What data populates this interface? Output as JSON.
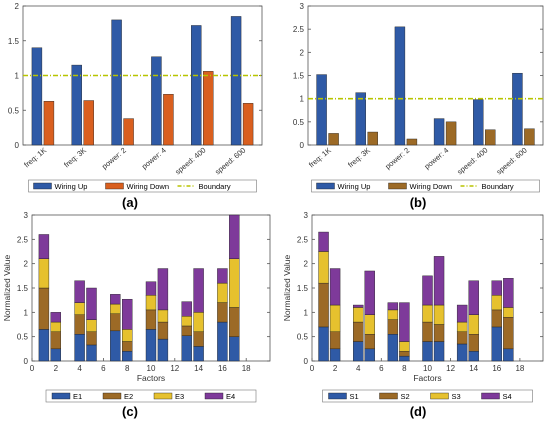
{
  "colors": {
    "blue": "#2f5aa6",
    "orange": "#d95f1f",
    "brown": "#9c6a26",
    "yellow": "#e6c12e",
    "purple": "#7e3a9a",
    "boundary": "#b8c400",
    "axis": "#333333"
  },
  "panels": {
    "a": {
      "caption": "(a)"
    },
    "b": {
      "caption": "(b)"
    },
    "c": {
      "caption": "(c)"
    },
    "d": {
      "caption": "(d)"
    }
  },
  "chart_data": [
    {
      "id": "a",
      "type": "bar",
      "categories": [
        "freq: 1K",
        "freq: 3K",
        "power: 2",
        "power: 4",
        "speed: 400",
        "speed: 600"
      ],
      "series": [
        {
          "name": "Wiring Up",
          "values": [
            1.4,
            1.15,
            1.8,
            1.27,
            1.72,
            1.85
          ]
        },
        {
          "name": "Wiring Down",
          "values": [
            0.63,
            0.64,
            0.38,
            0.73,
            1.06,
            0.6
          ]
        }
      ],
      "boundary": {
        "name": "Boundary",
        "value": 1.0
      },
      "ylim": [
        0,
        2
      ],
      "yticks": [
        "0",
        "0.5",
        "1",
        "1.5",
        "2"
      ],
      "legend_position": "bottom",
      "grid": false
    },
    {
      "id": "b",
      "type": "bar",
      "categories": [
        "freq: 1K",
        "freq: 3K",
        "power: 2",
        "power: 4",
        "speed: 400",
        "speed: 600"
      ],
      "series": [
        {
          "name": "Wiring Up",
          "values": [
            1.52,
            1.13,
            2.55,
            0.57,
            0.98,
            1.55
          ]
        },
        {
          "name": "Wiring Down",
          "values": [
            0.25,
            0.28,
            0.13,
            0.5,
            0.33,
            0.35
          ]
        }
      ],
      "boundary": {
        "name": "Boundary",
        "value": 1.0
      },
      "ylim": [
        0,
        3
      ],
      "yticks": [
        "0",
        "0.5",
        "1",
        "1.5",
        "2",
        "2.5",
        "3"
      ],
      "legend_position": "bottom",
      "grid": false
    },
    {
      "id": "c",
      "type": "bar",
      "stacked": true,
      "xlabel": "Factors",
      "ylabel": "Normalized Value",
      "x": [
        1,
        2,
        4,
        5,
        7,
        8,
        10,
        11,
        13,
        14,
        16,
        17
      ],
      "series": [
        {
          "name": "E1",
          "values": [
            0.65,
            0.25,
            0.55,
            0.33,
            0.62,
            0.2,
            0.65,
            0.45,
            0.52,
            0.3,
            0.8,
            0.5
          ]
        },
        {
          "name": "E2",
          "values": [
            0.85,
            0.35,
            0.4,
            0.27,
            0.35,
            0.2,
            0.4,
            0.35,
            0.2,
            0.3,
            0.4,
            0.6
          ]
        },
        {
          "name": "E3",
          "values": [
            0.6,
            0.2,
            0.25,
            0.25,
            0.2,
            0.25,
            0.3,
            0.25,
            0.2,
            0.4,
            0.4,
            1.0
          ]
        },
        {
          "name": "E4",
          "values": [
            0.5,
            0.2,
            0.45,
            0.65,
            0.2,
            0.62,
            0.28,
            0.85,
            0.3,
            0.9,
            0.3,
            0.9
          ]
        }
      ],
      "xlim": [
        0,
        20
      ],
      "ylim": [
        0,
        3
      ],
      "xticks": [
        "0",
        "2",
        "4",
        "6",
        "8",
        "10",
        "12",
        "14",
        "16",
        "18"
      ],
      "yticks": [
        "0",
        "0.5",
        "1",
        "1.5",
        "2",
        "2.5",
        "3"
      ],
      "legend_position": "bottom",
      "grid": false
    },
    {
      "id": "d",
      "type": "bar",
      "stacked": true,
      "xlabel": "Factors",
      "ylabel": "Normalized Value",
      "x": [
        1,
        2,
        4,
        5,
        7,
        8,
        10,
        11,
        13,
        14,
        16,
        17
      ],
      "series": [
        {
          "name": "S1",
          "values": [
            0.7,
            0.25,
            0.4,
            0.25,
            0.55,
            0.1,
            0.4,
            0.4,
            0.35,
            0.2,
            0.7,
            0.25
          ]
        },
        {
          "name": "S2",
          "values": [
            0.9,
            0.35,
            0.4,
            0.3,
            0.3,
            0.1,
            0.4,
            0.35,
            0.25,
            0.35,
            0.35,
            0.65
          ]
        },
        {
          "name": "S3",
          "values": [
            0.65,
            0.55,
            0.3,
            0.4,
            0.2,
            0.2,
            0.35,
            0.4,
            0.2,
            0.4,
            0.3,
            0.2
          ]
        },
        {
          "name": "S4",
          "values": [
            0.4,
            0.75,
            0.05,
            0.9,
            0.15,
            0.8,
            0.6,
            1.0,
            0.35,
            0.7,
            0.3,
            0.6
          ]
        }
      ],
      "xlim": [
        0,
        20
      ],
      "ylim": [
        0,
        3
      ],
      "xticks": [
        "0",
        "2",
        "4",
        "6",
        "8",
        "10",
        "12",
        "14",
        "16",
        "18"
      ],
      "yticks": [
        "0",
        "0.5",
        "1",
        "1.5",
        "2",
        "2.5",
        "3"
      ],
      "legend_position": "bottom",
      "grid": false
    }
  ]
}
